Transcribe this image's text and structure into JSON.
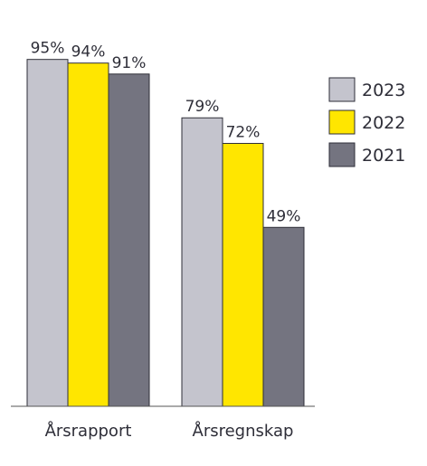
{
  "chart_data": {
    "type": "bar",
    "categories": [
      "Årsrapport",
      "Årsregnskap"
    ],
    "series": [
      {
        "name": "2023",
        "values": [
          95,
          79
        ],
        "labels": [
          "95%",
          "79%"
        ],
        "color": "#c4c4cd"
      },
      {
        "name": "2022",
        "values": [
          94,
          72
        ],
        "labels": [
          "94%",
          "72%"
        ],
        "color": "#ffe600"
      },
      {
        "name": "2021",
        "values": [
          91,
          49
        ],
        "labels": [
          "91%",
          "49%"
        ],
        "color": "#747480"
      }
    ],
    "ylim": [
      0,
      100
    ],
    "grid": false,
    "legend": "right"
  }
}
